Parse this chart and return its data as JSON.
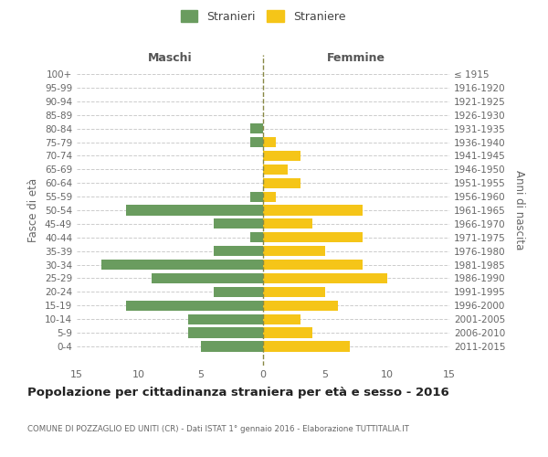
{
  "age_groups": [
    "100+",
    "95-99",
    "90-94",
    "85-89",
    "80-84",
    "75-79",
    "70-74",
    "65-69",
    "60-64",
    "55-59",
    "50-54",
    "45-49",
    "40-44",
    "35-39",
    "30-34",
    "25-29",
    "20-24",
    "15-19",
    "10-14",
    "5-9",
    "0-4"
  ],
  "birth_years": [
    "≤ 1915",
    "1916-1920",
    "1921-1925",
    "1926-1930",
    "1931-1935",
    "1936-1940",
    "1941-1945",
    "1946-1950",
    "1951-1955",
    "1956-1960",
    "1961-1965",
    "1966-1970",
    "1971-1975",
    "1976-1980",
    "1981-1985",
    "1986-1990",
    "1991-1995",
    "1996-2000",
    "2001-2005",
    "2006-2010",
    "2011-2015"
  ],
  "males": [
    0,
    0,
    0,
    0,
    1,
    1,
    0,
    0,
    0,
    1,
    11,
    4,
    1,
    4,
    13,
    9,
    4,
    11,
    6,
    6,
    5
  ],
  "females": [
    0,
    0,
    0,
    0,
    0,
    1,
    3,
    2,
    3,
    1,
    8,
    4,
    8,
    5,
    8,
    10,
    5,
    6,
    3,
    4,
    7
  ],
  "male_color": "#6a9c5f",
  "female_color": "#f5c518",
  "title": "Popolazione per cittadinanza straniera per età e sesso - 2016",
  "subtitle": "COMUNE DI POZZAGLIO ED UNITI (CR) - Dati ISTAT 1° gennaio 2016 - Elaborazione TUTTITALIA.IT",
  "ylabel_left": "Fasce di età",
  "ylabel_right": "Anni di nascita",
  "xlabel_left": "Maschi",
  "xlabel_right": "Femmine",
  "legend_stranieri": "Stranieri",
  "legend_straniere": "Straniere",
  "xlim": 15,
  "background_color": "#ffffff",
  "grid_color": "#cccccc"
}
